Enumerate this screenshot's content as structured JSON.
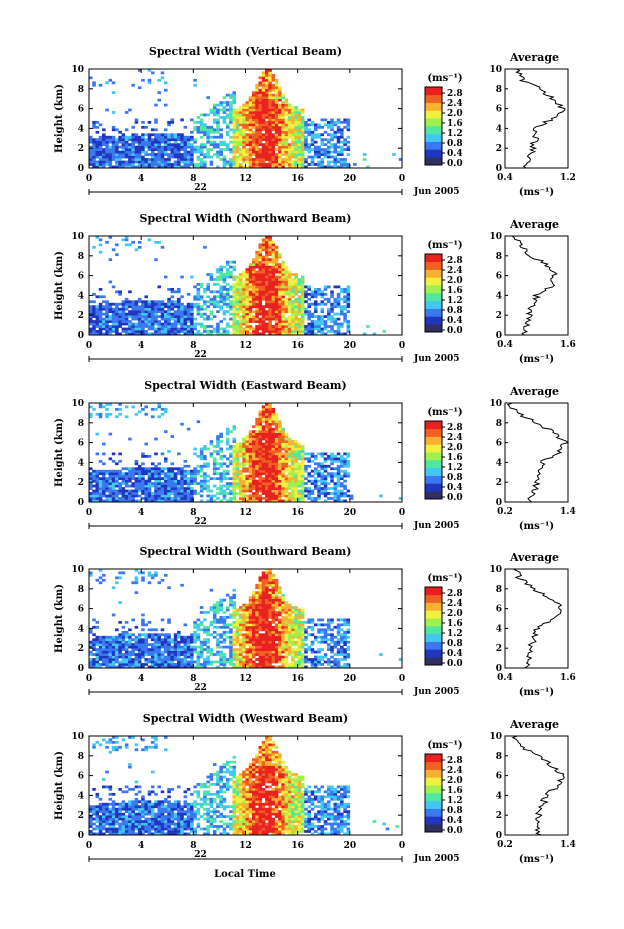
{
  "colorbar": {
    "unit_label": "(ms⁻¹)",
    "ticks": [
      "2.8",
      "2.4",
      "2.0",
      "1.6",
      "1.2",
      "0.8",
      "0.4",
      "0.0"
    ],
    "colors": [
      "#303060",
      "#2035c0",
      "#3a78f0",
      "#40c8f0",
      "#50e8a0",
      "#a0f050",
      "#f0f040",
      "#f8b030",
      "#f06020",
      "#e82020"
    ]
  },
  "common": {
    "x_ticks": [
      "0",
      "4",
      "8",
      "12",
      "16",
      "20",
      "0"
    ],
    "y_ticks": [
      "0",
      "2",
      "4",
      "6",
      "8",
      "10"
    ],
    "ylabel": "Height (km)",
    "date_day": "22",
    "date_month": "Jun 2005",
    "xlabel": "Local Time",
    "avg_title": "Average",
    "avg_unit": "(ms⁻¹)"
  },
  "chart_data": [
    {
      "type": "heatmap",
      "title": "Spectral Width (Vertical Beam)",
      "xlim": [
        0,
        24
      ],
      "ylim": [
        0,
        10
      ],
      "date_label": "22",
      "average": {
        "xticks": [
          "0.4",
          "1.2"
        ],
        "xlim": [
          0.4,
          1.2
        ],
        "heights": [
          0.2,
          1,
          2,
          3,
          4,
          5,
          6,
          7,
          8,
          9,
          9.8
        ],
        "values": [
          0.65,
          0.7,
          0.75,
          0.78,
          0.8,
          1.0,
          1.15,
          1.0,
          0.85,
          0.6,
          0.55
        ]
      }
    },
    {
      "type": "heatmap",
      "title": "Spectral Width (Northward Beam)",
      "xlim": [
        0,
        24
      ],
      "ylim": [
        0,
        10
      ],
      "date_label": "22",
      "average": {
        "xticks": [
          "0.4",
          "1.6"
        ],
        "xlim": [
          0.4,
          1.6
        ],
        "heights": [
          0.2,
          1,
          2,
          3,
          4,
          5,
          6,
          7,
          8,
          9,
          9.8
        ],
        "values": [
          0.75,
          0.8,
          0.85,
          0.9,
          1.0,
          1.3,
          1.35,
          1.2,
          0.9,
          0.7,
          0.6
        ]
      }
    },
    {
      "type": "heatmap",
      "title": "Spectral Width (Eastward Beam)",
      "xlim": [
        0,
        24
      ],
      "ylim": [
        0,
        10
      ],
      "date_label": "22",
      "average": {
        "xticks": [
          "0.2",
          "1.4"
        ],
        "xlim": [
          0.2,
          1.4
        ],
        "heights": [
          0.2,
          1,
          2,
          3,
          4,
          5,
          6,
          7,
          8,
          9,
          9.8
        ],
        "values": [
          0.7,
          0.75,
          0.8,
          0.85,
          0.9,
          1.2,
          1.35,
          1.15,
          0.8,
          0.45,
          0.3
        ]
      }
    },
    {
      "type": "heatmap",
      "title": "Spectral Width (Southward Beam)",
      "xlim": [
        0,
        24
      ],
      "ylim": [
        0,
        10
      ],
      "date_label": "22",
      "average": {
        "xticks": [
          "0.4",
          "1.6"
        ],
        "xlim": [
          0.4,
          1.6
        ],
        "heights": [
          0.2,
          1,
          2,
          3,
          4,
          5,
          6,
          7,
          8,
          9,
          9.8
        ],
        "values": [
          0.8,
          0.85,
          0.9,
          0.95,
          1.0,
          1.3,
          1.5,
          1.25,
          0.95,
          0.7,
          0.6
        ]
      }
    },
    {
      "type": "heatmap",
      "title": "Spectral Width (Westward Beam)",
      "xlim": [
        0,
        24
      ],
      "ylim": [
        0,
        10
      ],
      "date_label": "22",
      "average": {
        "xticks": [
          "0.2",
          "1.4"
        ],
        "xlim": [
          0.2,
          1.4
        ],
        "heights": [
          0.2,
          1,
          2,
          3,
          4,
          5,
          6,
          7,
          8,
          9,
          9.8
        ],
        "values": [
          0.85,
          0.8,
          0.85,
          0.9,
          1.0,
          1.2,
          1.3,
          1.1,
          0.8,
          0.5,
          0.4
        ]
      }
    }
  ]
}
